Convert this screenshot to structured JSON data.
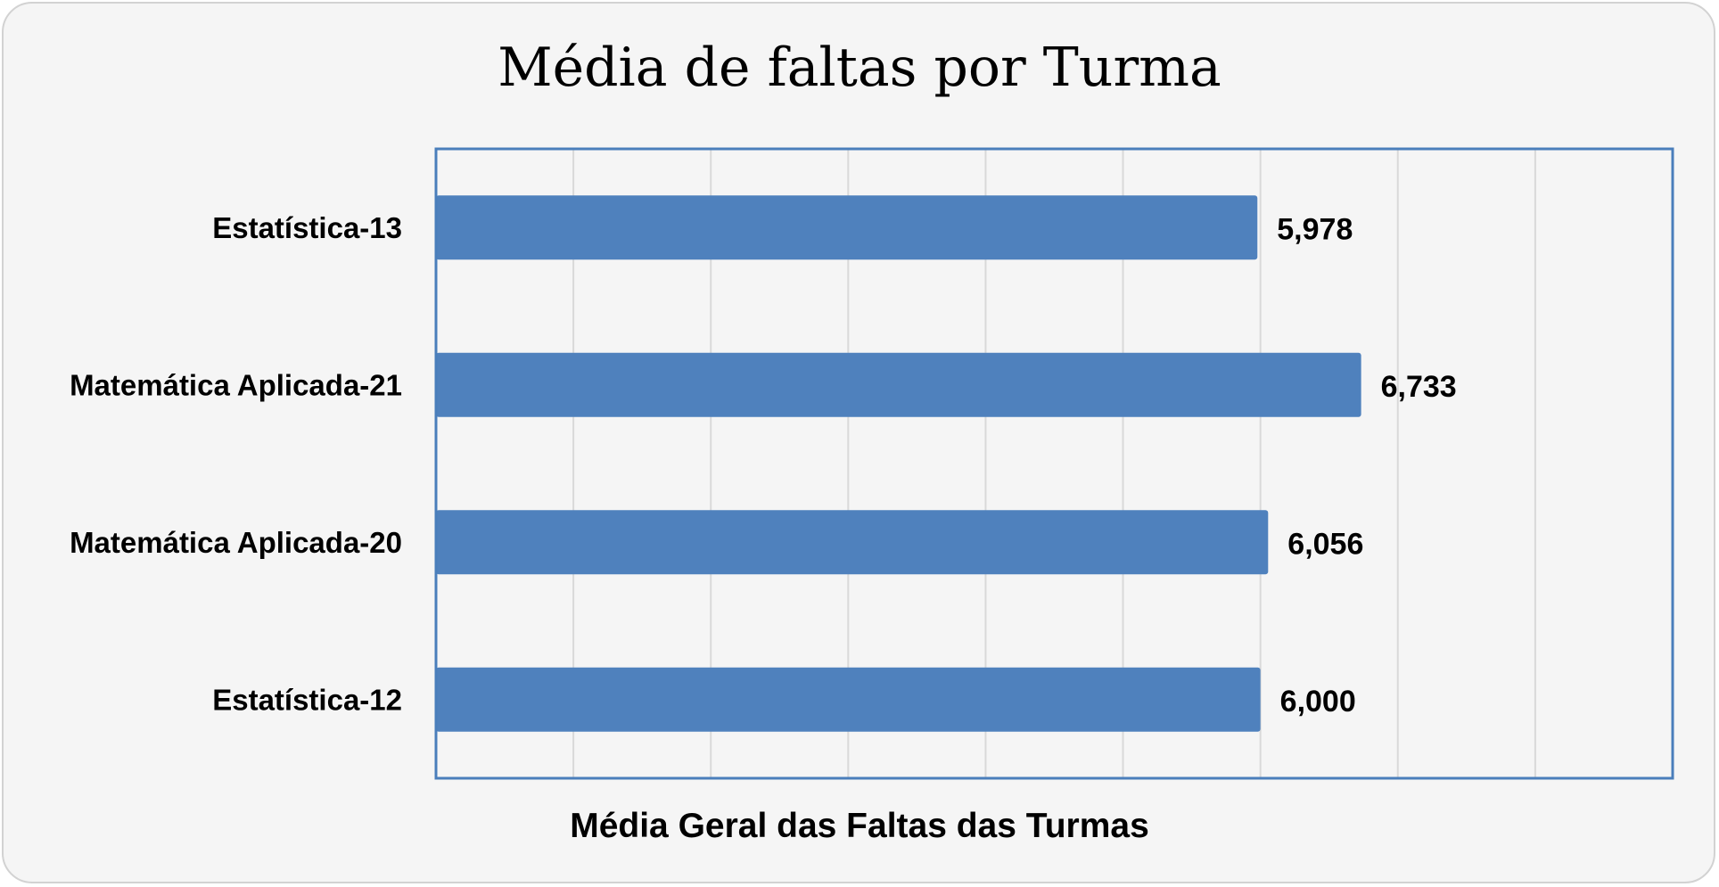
{
  "chart_data": {
    "type": "bar",
    "orientation": "horizontal",
    "title": "Média de faltas por Turma",
    "xlabel": "Média Geral das Faltas das Turmas",
    "ylabel": "",
    "categories": [
      "Estatística-13",
      "Matemática Aplicada-21",
      "Matemática Aplicada-20",
      "Estatística-12"
    ],
    "values": [
      5.978,
      6.733,
      6.056,
      6.0
    ],
    "value_labels": [
      "5,978",
      "6,733",
      "6,056",
      "6,000"
    ],
    "xlim": [
      0,
      9
    ],
    "grid": true,
    "legend": "none",
    "colors": {
      "bar": "#4f81bd",
      "plot_border": "#4a7ebb",
      "grid": "#d9d9d9",
      "background": "#f5f5f5"
    }
  }
}
